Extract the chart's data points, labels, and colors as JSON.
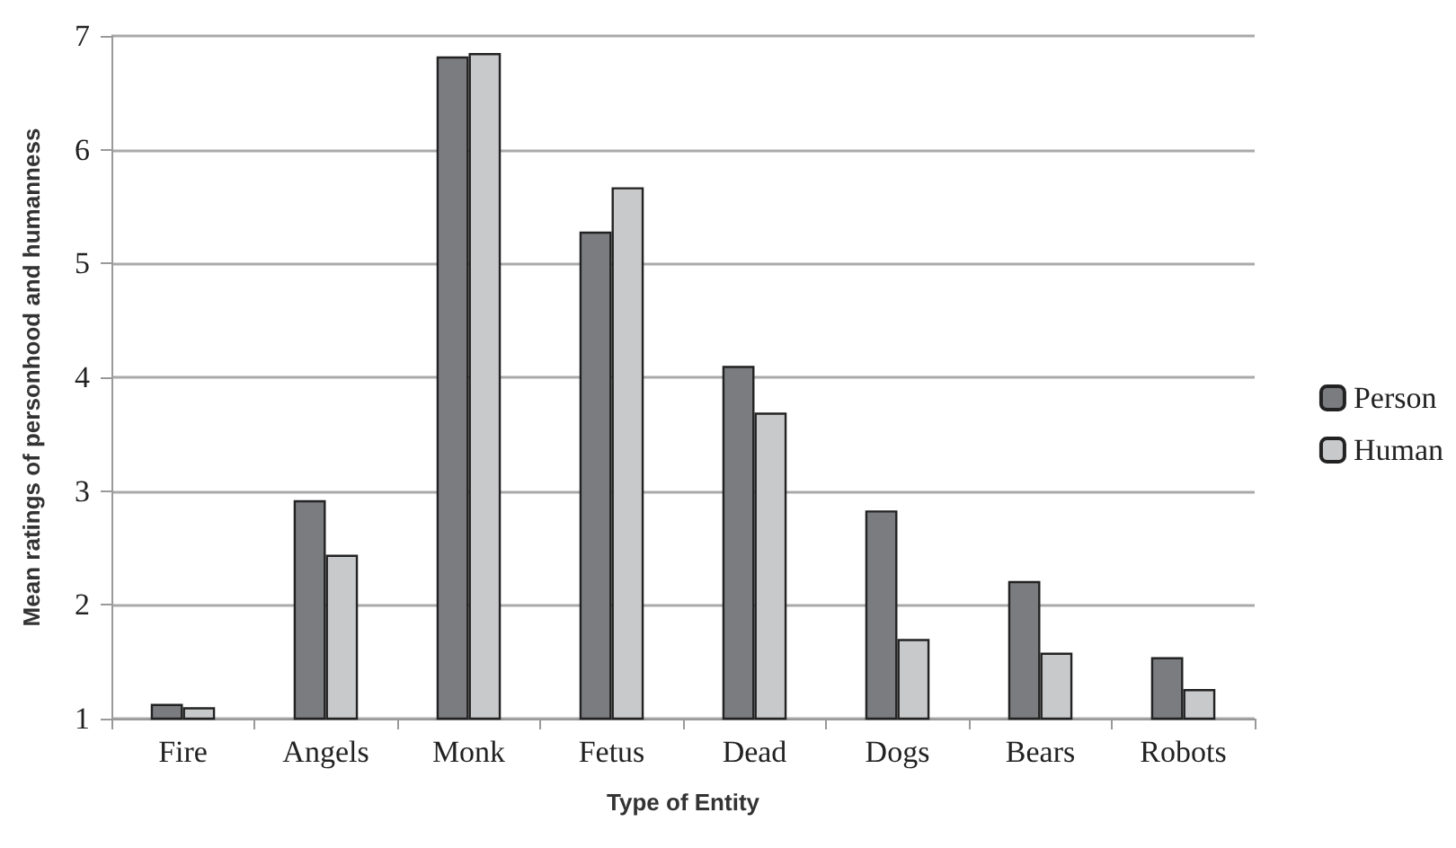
{
  "chart_data": {
    "type": "bar",
    "xlabel": "Type of Entity",
    "ylabel": "Mean ratings of personhood and humanness",
    "categories": [
      "Fire",
      "Angels",
      "Monk",
      "Fetus",
      "Dead",
      "Dogs",
      "Bears",
      "Robots"
    ],
    "series": [
      {
        "name": "Person",
        "color": "#7b7c80",
        "values": [
          1.13,
          2.92,
          6.82,
          5.28,
          4.1,
          2.83,
          2.21,
          1.54
        ]
      },
      {
        "name": "Human",
        "color": "#c8c9cb",
        "values": [
          1.1,
          2.44,
          6.85,
          5.67,
          3.69,
          1.7,
          1.58,
          1.26
        ]
      }
    ],
    "ylim": [
      1,
      7
    ],
    "yticks": [
      1,
      2,
      3,
      4,
      5,
      6,
      7
    ],
    "grid": "y",
    "legend": "right"
  }
}
